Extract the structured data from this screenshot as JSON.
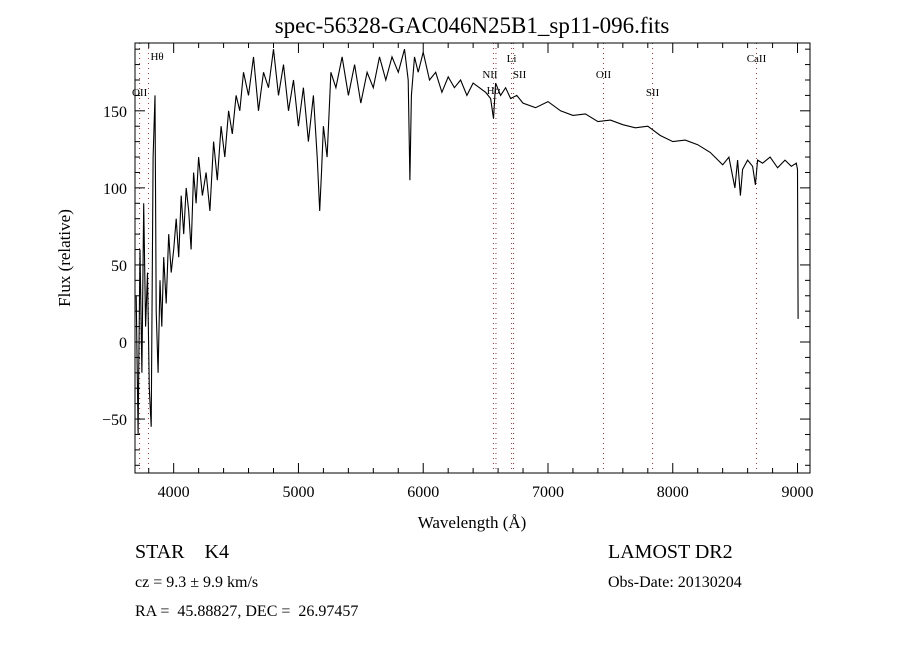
{
  "chart_data": {
    "type": "line",
    "title": "spec-56328-GAC046N25B1_sp11-096.fits",
    "xlabel": "Wavelength (Å)",
    "ylabel": "Flux (relative)",
    "xlim": [
      3690,
      9100
    ],
    "ylim": [
      -85,
      194
    ],
    "xticks": [
      4000,
      5000,
      6000,
      7000,
      8000,
      9000
    ],
    "xtick_labels": [
      "4000",
      "5000",
      "6000",
      "7000",
      "8000",
      "9000"
    ],
    "yticks": [
      -50,
      0,
      50,
      100,
      150
    ],
    "ytick_labels": [
      "−50",
      "0",
      "50",
      "100",
      "150"
    ],
    "grid": false,
    "series": [
      {
        "name": "spectrum",
        "x": [
          3700,
          3715,
          3730,
          3745,
          3760,
          3775,
          3790,
          3805,
          3820,
          3835,
          3850,
          3860,
          3875,
          3890,
          3905,
          3920,
          3940,
          3960,
          3980,
          4000,
          4020,
          4040,
          4060,
          4080,
          4100,
          4120,
          4140,
          4160,
          4180,
          4200,
          4230,
          4260,
          4290,
          4320,
          4350,
          4380,
          4410,
          4440,
          4470,
          4500,
          4530,
          4560,
          4600,
          4640,
          4680,
          4720,
          4760,
          4800,
          4840,
          4880,
          4920,
          4960,
          5000,
          5040,
          5080,
          5120,
          5150,
          5170,
          5185,
          5200,
          5230,
          5260,
          5300,
          5350,
          5400,
          5450,
          5500,
          5550,
          5600,
          5650,
          5700,
          5750,
          5800,
          5850,
          5880,
          5893,
          5905,
          5930,
          5960,
          6000,
          6050,
          6100,
          6150,
          6200,
          6250,
          6300,
          6350,
          6400,
          6450,
          6500,
          6540,
          6563,
          6580,
          6620,
          6660,
          6700,
          6750,
          6800,
          6900,
          7000,
          7100,
          7200,
          7300,
          7400,
          7500,
          7600,
          7700,
          7800,
          7900,
          8000,
          8100,
          8200,
          8300,
          8400,
          8450,
          8498,
          8520,
          8542,
          8560,
          8600,
          8640,
          8662,
          8680,
          8720,
          8780,
          8840,
          8900,
          8950,
          8990,
          9000,
          9005
        ],
        "y": [
          30,
          -60,
          60,
          -20,
          90,
          10,
          45,
          -30,
          -55,
          120,
          160,
          20,
          -20,
          40,
          10,
          55,
          25,
          70,
          45,
          60,
          80,
          55,
          95,
          70,
          100,
          85,
          60,
          110,
          90,
          120,
          95,
          110,
          85,
          130,
          105,
          140,
          120,
          150,
          135,
          160,
          150,
          175,
          160,
          185,
          150,
          175,
          165,
          190,
          160,
          180,
          150,
          170,
          140,
          165,
          130,
          160,
          120,
          85,
          110,
          140,
          120,
          175,
          165,
          185,
          160,
          180,
          155,
          175,
          165,
          185,
          170,
          185,
          175,
          190,
          170,
          105,
          160,
          185,
          175,
          188,
          170,
          175,
          162,
          172,
          165,
          170,
          160,
          168,
          165,
          162,
          158,
          145,
          168,
          160,
          165,
          158,
          160,
          155,
          152,
          156,
          150,
          147,
          148,
          143,
          144,
          141,
          139,
          140,
          134,
          130,
          131,
          128,
          123,
          115,
          120,
          100,
          118,
          95,
          112,
          118,
          114,
          102,
          118,
          116,
          120,
          113,
          118,
          114,
          116,
          112,
          15
        ]
      }
    ],
    "line_markers": [
      {
        "label": "Hθ",
        "wavelength": 3798
      },
      {
        "label": "OII",
        "wavelength": 3727
      },
      {
        "label": "Hα",
        "wavelength": 6563
      },
      {
        "label": "NII",
        "wavelength": 6583
      },
      {
        "label": "Li",
        "wavelength": 6708
      },
      {
        "label": "SII",
        "wavelength": 6724
      },
      {
        "label": "OII",
        "wavelength": 7445
      },
      {
        "label": "SII",
        "wavelength": 7838
      },
      {
        "label": "CaII",
        "wavelength": 8671
      }
    ]
  },
  "info": {
    "class": "STAR    K4",
    "cz": "cz = 9.3 ± 9.9 km/s",
    "coords": "RA =  45.88827, DEC =  26.97457",
    "survey": "LAMOST DR2",
    "obs_date": "Obs-Date: 20130204"
  }
}
